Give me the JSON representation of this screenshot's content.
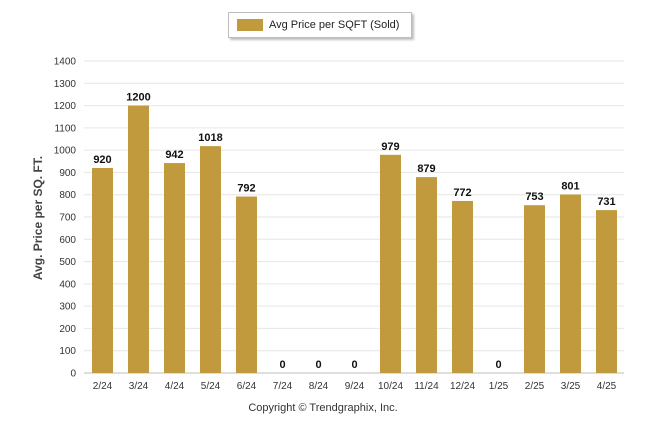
{
  "legend": {
    "label": "Avg Price per SQFT (Sold)"
  },
  "copyright": "Copyright © Trendgraphix, Inc.",
  "chart_data": {
    "type": "bar",
    "title": "",
    "xlabel": "",
    "ylabel": "Avg. Price per SQ. FT.",
    "ylim": [
      0,
      1400
    ],
    "yticks": [
      0,
      100,
      200,
      300,
      400,
      500,
      600,
      700,
      800,
      900,
      1000,
      1100,
      1200,
      1300,
      1400
    ],
    "grid": true,
    "legend_position": "top-center",
    "categories": [
      "2/24",
      "3/24",
      "4/24",
      "5/24",
      "6/24",
      "7/24",
      "8/24",
      "9/24",
      "10/24",
      "11/24",
      "12/24",
      "1/25",
      "2/25",
      "3/25",
      "4/25"
    ],
    "series": [
      {
        "name": "Avg Price per SQFT (Sold)",
        "color": "#c19a3e",
        "values": [
          920,
          1200,
          942,
          1018,
          792,
          0,
          0,
          0,
          979,
          879,
          772,
          0,
          753,
          801,
          731
        ]
      }
    ]
  }
}
